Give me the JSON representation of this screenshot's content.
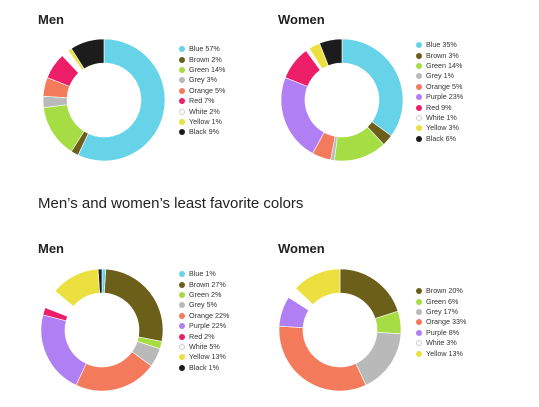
{
  "section_title": "Men’s and women’s least favorite colors",
  "chart_data": [
    {
      "type": "pie",
      "title": "Men",
      "categories": [
        "Blue",
        "Brown",
        "Green",
        "Grey",
        "Orange",
        "Red",
        "White",
        "Yellow",
        "Black"
      ],
      "values": [
        57,
        2,
        14,
        3,
        5,
        7,
        2,
        1,
        9
      ],
      "labels": [
        "Blue 57%",
        "Brown 2%",
        "Green 14%",
        "Grey 3%",
        "Orange 5%",
        "Red 7%",
        "White 2%",
        "Yellow 1%",
        "Black 9%"
      ],
      "colors": [
        "#67d3e8",
        "#6b5f1a",
        "#a6dd44",
        "#b9b9b9",
        "#f37b5b",
        "#ec1e67",
        "#ffffff",
        "#ece040",
        "#1c1c1c"
      ],
      "legend": "right"
    },
    {
      "type": "pie",
      "title": "Women",
      "categories": [
        "Blue",
        "Brown",
        "Green",
        "Grey",
        "Orange",
        "Purple",
        "Red",
        "White",
        "Yellow",
        "Black"
      ],
      "values": [
        35,
        3,
        14,
        1,
        5,
        23,
        9,
        1,
        3,
        6
      ],
      "labels": [
        "Blue 35%",
        "Brown 3%",
        "Green 14%",
        "Grey 1%",
        "Orange 5%",
        "Purple 23%",
        "Red 9%",
        "White 1%",
        "Yellow 3%",
        "Black 6%"
      ],
      "colors": [
        "#67d3e8",
        "#6b5f1a",
        "#a6dd44",
        "#b9b9b9",
        "#f37b5b",
        "#b17ff4",
        "#ec1e67",
        "#ffffff",
        "#ece040",
        "#1c1c1c"
      ],
      "legend": "right"
    },
    {
      "type": "pie",
      "title": "Men",
      "categories": [
        "Blue",
        "Brown",
        "Green",
        "Grey",
        "Orange",
        "Purple",
        "Red",
        "White",
        "Yellow",
        "Black"
      ],
      "values": [
        1,
        27,
        2,
        5,
        22,
        22,
        2,
        5,
        13,
        1
      ],
      "labels": [
        "Blue 1%",
        "Brown 27%",
        "Green 2%",
        "Grey 5%",
        "Orange 22%",
        "Purple 22%",
        "Red 2%",
        "White 5%",
        "Yellow 13%",
        "Black 1%"
      ],
      "colors": [
        "#67d3e8",
        "#6b5f1a",
        "#a6dd44",
        "#b9b9b9",
        "#f37b5b",
        "#b17ff4",
        "#ec1e67",
        "#ffffff",
        "#ece040",
        "#1c1c1c"
      ],
      "legend": "right"
    },
    {
      "type": "pie",
      "title": "Women",
      "categories": [
        "Brown",
        "Green",
        "Grey",
        "Orange",
        "Purple",
        "White",
        "Yellow"
      ],
      "values": [
        20,
        6,
        17,
        33,
        8,
        3,
        13
      ],
      "labels": [
        "Brown 20%",
        "Green 6%",
        "Grey 17%",
        "Orange 33%",
        "Purple 8%",
        "White 3%",
        "Yellow 13%"
      ],
      "colors": [
        "#6b5f1a",
        "#a6dd44",
        "#b9b9b9",
        "#f37b5b",
        "#b17ff4",
        "#ffffff",
        "#ece040"
      ],
      "legend": "right"
    }
  ]
}
